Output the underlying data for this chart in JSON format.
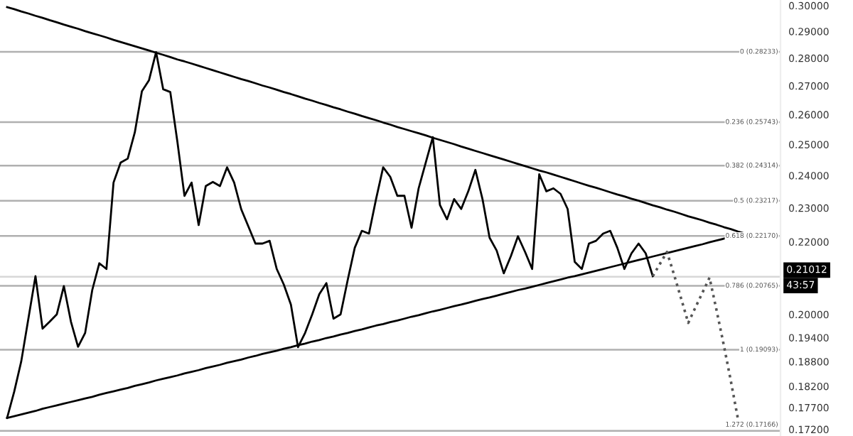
{
  "chart_data": {
    "type": "line",
    "log": true,
    "categories": [
      null,
      null,
      null,
      null,
      null,
      null,
      null,
      null,
      null,
      null,
      null,
      null,
      null,
      null,
      null,
      null,
      null,
      null,
      null,
      null,
      null,
      null,
      null,
      null,
      null,
      null,
      null,
      null,
      null,
      null,
      null,
      null,
      null,
      null,
      null,
      null,
      null,
      null,
      null,
      null,
      null,
      null,
      null,
      null,
      null,
      null,
      null,
      null,
      null,
      null,
      null,
      null,
      null,
      null,
      null,
      null,
      null,
      null,
      null,
      null,
      null,
      null,
      null,
      null,
      null,
      null,
      null,
      null,
      null,
      null,
      null,
      null,
      null,
      null,
      null,
      null,
      null,
      null,
      null,
      null,
      null,
      null,
      null,
      null,
      null,
      null,
      null,
      null,
      null,
      null,
      null,
      null,
      null,
      null,
      null,
      null,
      null,
      null,
      null,
      null,
      null,
      null,
      null,
      null,
      null
    ],
    "series": [
      {
        "color": "#000000",
        "line_style": "solid",
        "values": [
          0.1746,
          0.1807,
          0.1881,
          0.1989,
          0.2103,
          0.1963,
          0.1981,
          0.2,
          0.2076,
          0.1981,
          0.1917,
          0.1952,
          0.2065,
          0.2139,
          0.2123,
          0.2378,
          0.2441,
          0.2454,
          0.254,
          0.2681,
          0.272,
          0.2822,
          0.2688,
          0.2678,
          0.2509,
          0.2337,
          0.2378,
          0.2249,
          0.2367,
          0.238,
          0.2367,
          0.2426,
          0.2378,
          0.2296,
          0.2245,
          0.2195,
          0.2195,
          0.2203,
          0.2123,
          0.208,
          0.2026,
          0.1916,
          0.1952,
          0.2,
          0.2054,
          0.2084,
          0.1989,
          0.2,
          0.2092,
          0.2183,
          0.2232,
          0.2224,
          0.2327,
          0.2426,
          0.2396,
          0.2337,
          0.2337,
          0.2241,
          0.236,
          0.2441,
          0.2524,
          0.2309,
          0.2266,
          0.2327,
          0.2297,
          0.2351,
          0.2418,
          0.2327,
          0.2212,
          0.2175,
          0.2111,
          0.2159,
          0.2216,
          0.2171,
          0.2123,
          0.2404,
          0.2351,
          0.236,
          0.2343,
          0.2297,
          0.2143,
          0.2123,
          0.2195,
          0.2203,
          0.2224,
          0.2232,
          0.2183,
          0.2123,
          0.2167,
          0.2195,
          0.2167,
          0.2103,
          null,
          null,
          null,
          null,
          null,
          null,
          null,
          null,
          null,
          null,
          null,
          null,
          null
        ]
      },
      {
        "color": "#000000",
        "line_style": "solid",
        "values": [
          0.2994,
          0.2986,
          0.2977,
          0.2969,
          0.296,
          0.2952,
          0.2943,
          0.2935,
          0.2926,
          0.2918,
          0.291,
          0.2901,
          0.2893,
          0.2885,
          0.2877,
          0.2868,
          0.286,
          0.2852,
          0.2844,
          0.2836,
          0.2828,
          0.282,
          0.2812,
          0.2804,
          0.2795,
          0.2788,
          0.278,
          0.2772,
          0.2764,
          0.2756,
          0.2748,
          0.274,
          0.2732,
          0.2724,
          0.2717,
          0.2709,
          0.2701,
          0.2694,
          0.2686,
          0.2678,
          0.2671,
          0.2663,
          0.2655,
          0.2648,
          0.264,
          0.2633,
          0.2625,
          0.2618,
          0.261,
          0.2603,
          0.2595,
          0.2588,
          0.2581,
          0.2573,
          0.2566,
          0.2558,
          0.2551,
          0.2544,
          0.2537,
          0.253,
          0.2522,
          0.2515,
          0.2508,
          0.2501,
          0.2493,
          0.2486,
          0.2479,
          0.2472,
          0.2465,
          0.2458,
          0.2451,
          0.2444,
          0.2437,
          0.243,
          0.2423,
          0.2416,
          0.241,
          0.2403,
          0.2396,
          0.2389,
          0.2382,
          0.2375,
          0.2368,
          0.2362,
          0.2355,
          0.2348,
          0.2341,
          0.2335,
          0.2328,
          0.2322,
          0.2315,
          0.2308,
          0.2302,
          0.2295,
          0.2289,
          0.2282,
          0.2275,
          0.2269,
          0.2263,
          0.2256,
          0.225,
          0.2243,
          0.2237,
          0.223,
          0.2224
        ]
      },
      {
        "color": "#000000",
        "line_style": "solid",
        "values": [
          0.1746,
          0.175,
          0.1754,
          0.1758,
          0.1762,
          0.1767,
          0.1771,
          0.1775,
          0.1779,
          0.1783,
          0.1787,
          0.1791,
          0.1795,
          0.18,
          0.1804,
          0.1808,
          0.1812,
          0.1816,
          0.1821,
          0.1825,
          0.1829,
          0.1834,
          0.1838,
          0.1842,
          0.1846,
          0.1851,
          0.1855,
          0.1859,
          0.1864,
          0.1868,
          0.1872,
          0.1877,
          0.1881,
          0.1885,
          0.189,
          0.1894,
          0.1899,
          0.1903,
          0.1907,
          0.1912,
          0.1916,
          0.1921,
          0.1925,
          0.193,
          0.1934,
          0.1939,
          0.1943,
          0.1948,
          0.1952,
          0.1957,
          0.1961,
          0.1966,
          0.1971,
          0.1975,
          0.198,
          0.1984,
          0.1989,
          0.1994,
          0.1998,
          0.2003,
          0.2008,
          0.2012,
          0.2017,
          0.2022,
          0.2026,
          0.2031,
          0.2036,
          0.2041,
          0.2045,
          0.205,
          0.2055,
          0.206,
          0.2065,
          0.2069,
          0.2074,
          0.2079,
          0.2084,
          0.2089,
          0.2094,
          0.2099,
          0.2103,
          0.2108,
          0.2113,
          0.2118,
          0.2123,
          0.2128,
          0.2133,
          0.2138,
          0.2143,
          0.2148,
          0.2153,
          0.2158,
          0.2163,
          0.2168,
          0.2173,
          0.2178,
          0.2183,
          0.2188,
          0.2193,
          0.2199,
          0.2204,
          0.2209,
          0.2214,
          0.2219,
          0.2224
        ]
      },
      {
        "color": "#555555",
        "line_style": "dotted",
        "values": [
          null,
          null,
          null,
          null,
          null,
          null,
          null,
          null,
          null,
          null,
          null,
          null,
          null,
          null,
          null,
          null,
          null,
          null,
          null,
          null,
          null,
          null,
          null,
          null,
          null,
          null,
          null,
          null,
          null,
          null,
          null,
          null,
          null,
          null,
          null,
          null,
          null,
          null,
          null,
          null,
          null,
          null,
          null,
          null,
          null,
          null,
          null,
          null,
          null,
          null,
          null,
          null,
          null,
          null,
          null,
          null,
          null,
          null,
          null,
          null,
          null,
          null,
          null,
          null,
          null,
          null,
          null,
          null,
          null,
          null,
          null,
          null,
          null,
          null,
          null,
          null,
          null,
          null,
          null,
          null,
          null,
          null,
          null,
          null,
          null,
          null,
          null,
          null,
          null,
          null,
          null,
          0.2103,
          0.2137,
          0.2171,
          0.2107,
          0.2042,
          0.1978,
          0.2018,
          0.2058,
          0.2099,
          0.201,
          0.1922,
          0.1833,
          0.1744,
          null
        ]
      }
    ],
    "ylim": [
      0.1705,
      0.3022
    ],
    "yticks": [
      {
        "value": 0.3,
        "label": "0.30000"
      },
      {
        "value": 0.29,
        "label": "0.29000"
      },
      {
        "value": 0.28,
        "label": "0.28000"
      },
      {
        "value": 0.27,
        "label": "0.27000"
      },
      {
        "value": 0.26,
        "label": "0.26000"
      },
      {
        "value": 0.25,
        "label": "0.25000"
      },
      {
        "value": 0.24,
        "label": "0.24000"
      },
      {
        "value": 0.23,
        "label": "0.23000"
      },
      {
        "value": 0.22,
        "label": "0.22000"
      },
      {
        "value": 0.2,
        "label": "0.20000"
      },
      {
        "value": 0.194,
        "label": "0.19400"
      },
      {
        "value": 0.188,
        "label": "0.18800"
      },
      {
        "value": 0.182,
        "label": "0.18200"
      },
      {
        "value": 0.177,
        "label": "0.17700"
      },
      {
        "value": 0.172,
        "label": "0.17200"
      }
    ],
    "tick_labels": "y",
    "ref_lines": [
      {
        "axis": "y",
        "value": 0.28233,
        "label": "0 (0.28233)",
        "color": "#b0b0b0"
      },
      {
        "axis": "y",
        "value": 0.25743,
        "label": "0.236 (0.25743)",
        "color": "#b0b0b0"
      },
      {
        "axis": "y",
        "value": 0.24314,
        "label": "0.382 (0.24314)",
        "color": "#b0b0b0"
      },
      {
        "axis": "y",
        "value": 0.23217,
        "label": "0.5 (0.23217)",
        "color": "#b0b0b0"
      },
      {
        "axis": "y",
        "value": 0.2217,
        "label": "0.618 (0.22170)",
        "color": "#b0b0b0"
      },
      {
        "axis": "y",
        "value": 0.20765,
        "label": "0.786 (0.20765)",
        "color": "#b0b0b0"
      },
      {
        "axis": "y",
        "value": 0.19093,
        "label": "1 (0.19093)",
        "color": "#b0b0b0"
      },
      {
        "axis": "y",
        "value": 0.17166,
        "label": "1.272 (0.17166)",
        "color": "#b0b0b0"
      },
      {
        "axis": "y",
        "value": 0.21012,
        "label": "0.21012",
        "color": "#d8d8d8"
      }
    ],
    "annotations": [
      "43:57"
    ]
  }
}
